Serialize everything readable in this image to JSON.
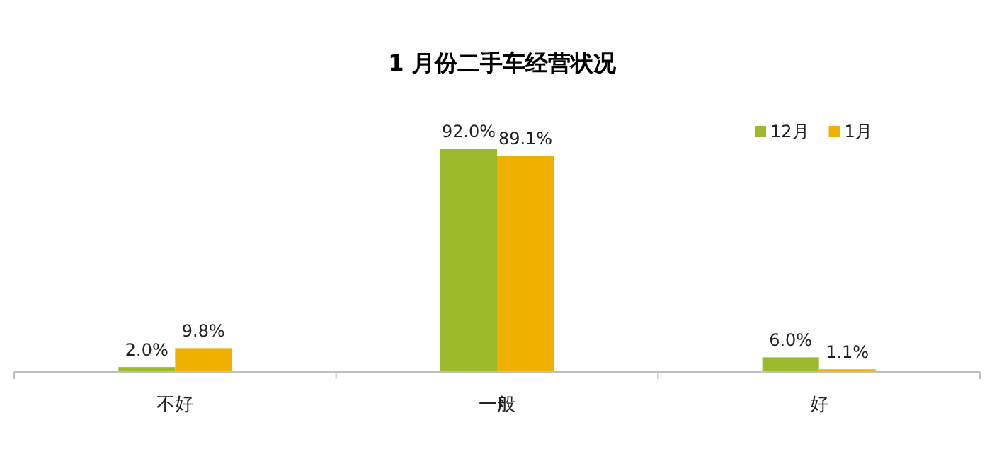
{
  "chart_data": {
    "type": "bar",
    "title": "1 月份二手车经营状况",
    "categories": [
      "不好",
      "一般",
      "好"
    ],
    "series": [
      {
        "name": "12月",
        "color": "#9bbb2c",
        "values": [
          2.0,
          92.0,
          6.0
        ],
        "value_labels": [
          "2.0%",
          "92.0%",
          "6.0%"
        ]
      },
      {
        "name": "1月",
        "color": "#f0b000",
        "values": [
          9.8,
          89.1,
          1.1
        ],
        "value_labels": [
          "9.8%",
          "89.1%",
          "1.1%"
        ]
      }
    ],
    "legend": "top right"
  }
}
